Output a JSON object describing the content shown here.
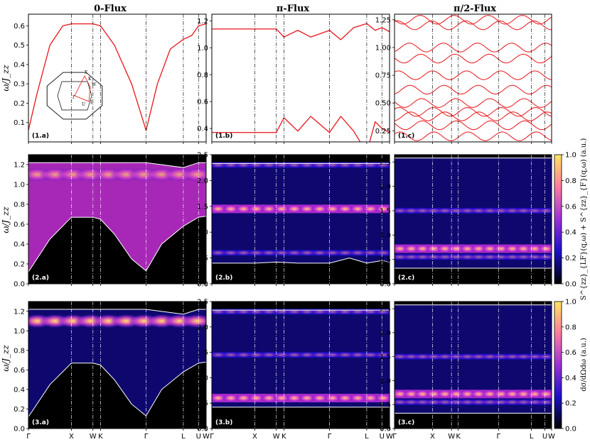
{
  "figure": {
    "columns": [
      {
        "title": "0-Flux"
      },
      {
        "title": "π-Flux"
      },
      {
        "title": "π/2-Flux"
      }
    ],
    "k_labels": [
      "Γ",
      "X",
      "W",
      "K",
      "Γ",
      "L",
      "U",
      "W"
    ],
    "k_positions": [
      0,
      1,
      1.5,
      1.677,
      2.737,
      3.603,
      3.957,
      4.134
    ],
    "y_label": "ω/J_zz",
    "colorbar_row2_label": "S^{zz}_{LF}(q,ω) + S^{zz}_{F}(q,ω) (a.u.)",
    "colorbar_row3_label": "dσ/dΩdω (a.u.)",
    "colorbar_ticks": [
      "0.0",
      "0.2",
      "0.4",
      "0.6",
      "0.8",
      "1.0"
    ],
    "colors": {
      "line": "#e8141a",
      "envelope": "#ffffff",
      "heat_bg": "#000000",
      "heat_low": "#1a0fc9",
      "heat_mid": "#c42fd6",
      "heat_high": "#ffe65c"
    }
  },
  "chart_data": [
    {
      "panel": "(1.a)",
      "type": "line",
      "title": "0-Flux",
      "ylabel": "ω/J_zz",
      "ylim": [
        0.0,
        0.66
      ],
      "yticks": [
        "0.1",
        "0.2",
        "0.3",
        "0.4",
        "0.5",
        "0.6"
      ],
      "inset": "truncated octahedron Brillouin zone",
      "inset_labels": [
        "Γ",
        "X",
        "W",
        "K",
        "L",
        "U"
      ],
      "series": [
        {
          "name": "band",
          "x": [
            0,
            0.2,
            0.5,
            0.8,
            1.0,
            1.5,
            1.677,
            2.0,
            2.4,
            2.737,
            3.0,
            3.3,
            3.603,
            3.8,
            3.957,
            4.134
          ],
          "y": [
            0.06,
            0.25,
            0.5,
            0.6,
            0.61,
            0.61,
            0.6,
            0.5,
            0.3,
            0.06,
            0.3,
            0.48,
            0.53,
            0.55,
            0.6,
            0.61
          ]
        }
      ]
    },
    {
      "panel": "(1.b)",
      "type": "line",
      "title": "π-Flux",
      "ylim": [
        0.3,
        1.25
      ],
      "yticks": [
        "0.4",
        "0.6",
        "0.8",
        "1.0",
        "1.2"
      ],
      "series": [
        {
          "name": "upper",
          "x": [
            0,
            1.5,
            1.677,
            2.0,
            2.3,
            2.737,
            3.0,
            3.3,
            3.603,
            3.8,
            3.957,
            4.134
          ],
          "y": [
            1.14,
            1.14,
            1.08,
            1.13,
            1.08,
            1.13,
            1.06,
            1.15,
            1.18,
            1.13,
            1.15,
            1.12
          ]
        },
        {
          "name": "lower",
          "x": [
            0,
            1.5,
            1.677,
            2.0,
            2.3,
            2.737,
            3.0,
            3.3,
            3.603,
            3.8,
            3.957,
            4.134
          ],
          "y": [
            0.37,
            0.37,
            0.48,
            0.38,
            0.49,
            0.37,
            0.49,
            0.38,
            0.22,
            0.45,
            0.4,
            0.37
          ]
        }
      ]
    },
    {
      "panel": "(1.c)",
      "type": "line",
      "title": "π/2-Flux",
      "ylim": [
        0.15,
        1.3
      ],
      "yticks": [
        "0.25",
        "0.50",
        "0.75",
        "1.00",
        "1.25"
      ],
      "bands": [
        1.25,
        1.2,
        1.0,
        0.9,
        0.75,
        0.62,
        0.5,
        0.42,
        0.38,
        0.3,
        0.2
      ]
    },
    {
      "panel": "(2.a)",
      "type": "heatmap",
      "ylim": [
        0.0,
        1.3
      ],
      "yticks": [
        "0.0",
        "0.2",
        "0.4",
        "0.6",
        "0.8",
        "1.0",
        "1.2"
      ],
      "upper_envelope": {
        "x": [
          0,
          1,
          1.5,
          1.677,
          2.737,
          3.603,
          3.957,
          4.134
        ],
        "y": [
          1.22,
          1.22,
          1.22,
          1.22,
          1.22,
          1.17,
          1.22,
          1.22
        ]
      },
      "lower_envelope": {
        "x": [
          0,
          0.5,
          1.0,
          1.5,
          1.677,
          2.0,
          2.4,
          2.737,
          3.1,
          3.603,
          3.957,
          4.134
        ],
        "y": [
          0.12,
          0.45,
          0.67,
          0.67,
          0.65,
          0.5,
          0.25,
          0.13,
          0.4,
          0.58,
          0.67,
          0.68
        ]
      }
    },
    {
      "panel": "(2.b)",
      "type": "heatmap",
      "ylim": [
        0.0,
        2.5
      ],
      "yticks": [
        "0.0",
        "0.5",
        "1.0",
        "1.5",
        "2.0",
        "2.5"
      ],
      "upper_envelope": {
        "x": [
          0,
          4.134
        ],
        "y": [
          2.33,
          2.33
        ]
      },
      "lower_envelope": {
        "x": [
          0,
          1.0,
          1.5,
          2.0,
          2.737,
          3.2,
          3.603,
          3.957,
          4.134
        ],
        "y": [
          0.4,
          0.4,
          0.42,
          0.4,
          0.4,
          0.5,
          0.4,
          0.45,
          0.42
        ]
      },
      "bright_bands": [
        1.45,
        2.3,
        0.6
      ]
    },
    {
      "panel": "(2.c)",
      "type": "heatmap",
      "ylim": [
        0.0,
        2.65
      ],
      "yticks": [
        "0.0",
        "0.5",
        "1.0",
        "1.5",
        "2.0",
        "2.5"
      ],
      "upper_envelope": {
        "x": [
          0,
          4.134
        ],
        "y": [
          2.58,
          2.58
        ]
      },
      "lower_envelope": {
        "x": [
          0,
          4.134
        ],
        "y": [
          0.32,
          0.32
        ]
      },
      "bright_bands": [
        0.72,
        0.55,
        1.5
      ]
    },
    {
      "panel": "(3.a)",
      "type": "heatmap",
      "ylim": [
        0.0,
        1.3
      ],
      "yticks": [
        "0.0",
        "0.2",
        "0.4",
        "0.6",
        "0.8",
        "1.0",
        "1.2"
      ],
      "upper_envelope": {
        "x": [
          0,
          1,
          1.5,
          1.677,
          2.737,
          3.603,
          3.957,
          4.134
        ],
        "y": [
          1.22,
          1.22,
          1.22,
          1.22,
          1.22,
          1.17,
          1.22,
          1.22
        ]
      },
      "lower_envelope": {
        "x": [
          0,
          0.5,
          1.0,
          1.5,
          1.677,
          2.0,
          2.4,
          2.737,
          3.1,
          3.603,
          3.957,
          4.134
        ],
        "y": [
          0.12,
          0.45,
          0.67,
          0.67,
          0.65,
          0.5,
          0.25,
          0.13,
          0.4,
          0.58,
          0.67,
          0.68
        ]
      }
    },
    {
      "panel": "(3.b)",
      "type": "heatmap",
      "ylim": [
        0.0,
        2.5
      ],
      "yticks": [
        "0.0",
        "0.5",
        "1.0",
        "1.5",
        "2.0",
        "2.5"
      ],
      "upper_envelope": {
        "x": [
          0,
          4.134
        ],
        "y": [
          2.33,
          2.33
        ]
      },
      "lower_envelope": {
        "x": [
          0,
          4.134
        ],
        "y": [
          0.42,
          0.42
        ]
      },
      "bright_bands": [
        0.6,
        1.45,
        2.3
      ]
    },
    {
      "panel": "(3.c)",
      "type": "heatmap",
      "ylim": [
        0.0,
        2.65
      ],
      "yticks": [
        "0.0",
        "0.5",
        "1.0",
        "1.5",
        "2.0",
        "2.5"
      ],
      "upper_envelope": {
        "x": [
          0,
          4.134
        ],
        "y": [
          2.58,
          2.58
        ]
      },
      "lower_envelope": {
        "x": [
          0,
          4.134
        ],
        "y": [
          0.32,
          0.32
        ]
      },
      "bright_bands": [
        0.72,
        0.55,
        1.5
      ]
    }
  ]
}
